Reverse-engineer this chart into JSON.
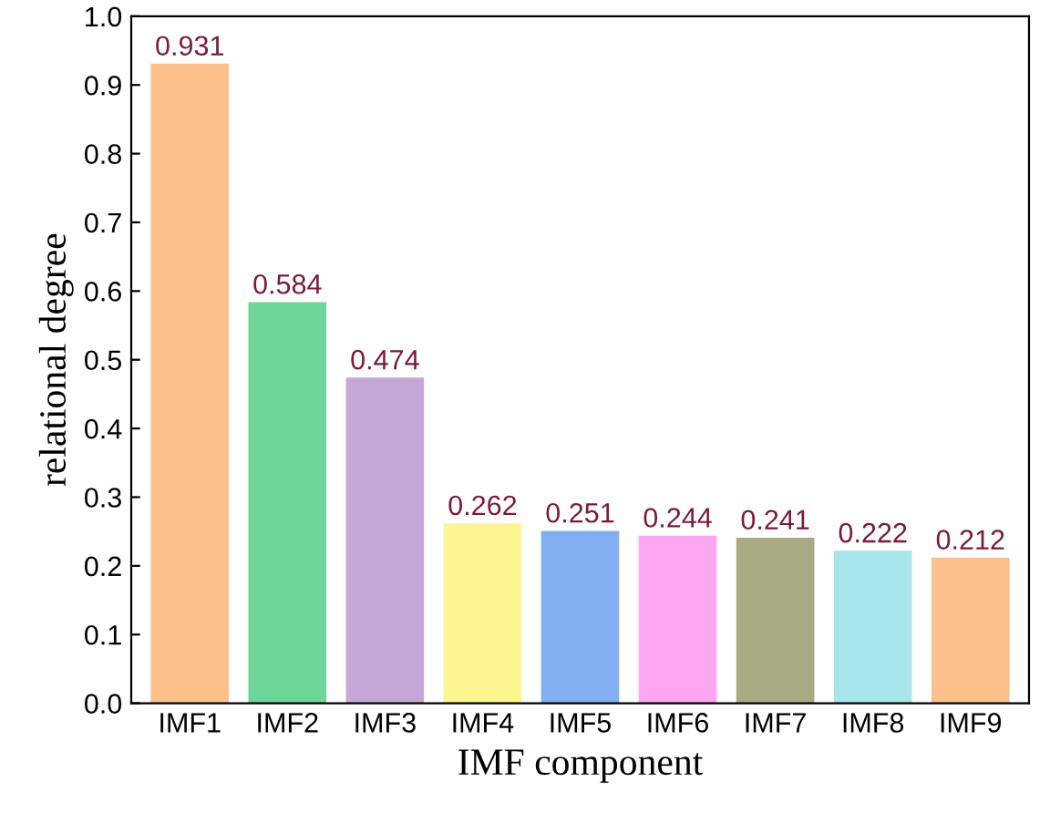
{
  "chart_data": {
    "type": "bar",
    "xlabel": "IMF component",
    "ylabel": "relational degree",
    "categories": [
      "IMF1",
      "IMF2",
      "IMF3",
      "IMF4",
      "IMF5",
      "IMF6",
      "IMF7",
      "IMF8",
      "IMF9"
    ],
    "values": [
      0.931,
      0.584,
      0.474,
      0.262,
      0.251,
      0.244,
      0.241,
      0.222,
      0.212
    ],
    "colors": [
      "#fdc08a",
      "#6fd69a",
      "#c4a7d6",
      "#fdf68f",
      "#82aff0",
      "#fca7f0",
      "#a9a984",
      "#a7e5ea",
      "#fdc08a"
    ],
    "data_labels": true,
    "ylim": [
      0.0,
      1.0
    ],
    "yticks": [
      {
        "value": 0,
        "label": "0.0"
      },
      0.1,
      0.2,
      0.3,
      0.4,
      0.5,
      0.6,
      0.7,
      0.8,
      0.9,
      {
        "value": 1,
        "label": "1.0"
      }
    ]
  }
}
